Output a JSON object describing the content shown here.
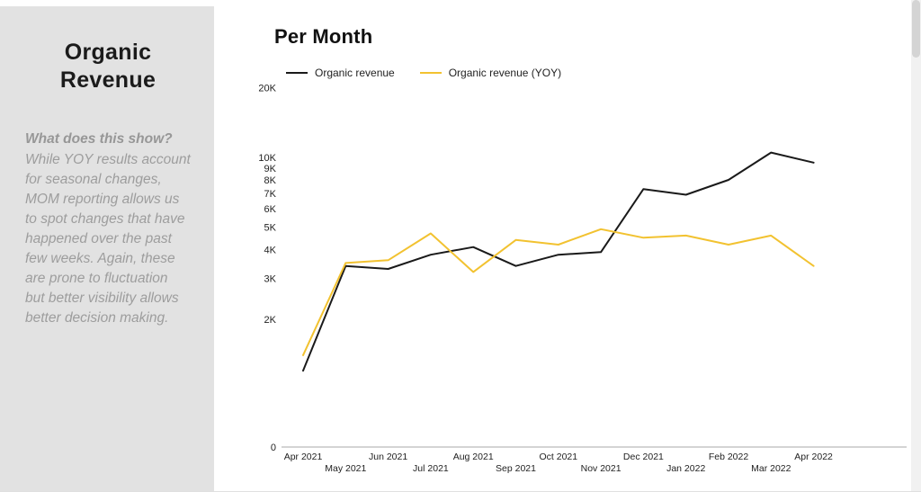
{
  "sidebar": {
    "title": "Organic Revenue",
    "question": "What does this show?",
    "description": "While YOY results account for seasonal changes, MOM reporting allows us to spot changes that have happened over the past few weeks. Again, these are prone to fluctuation but better visibility allows better decision making."
  },
  "main": {
    "title": "Per Month"
  },
  "chart_data": {
    "type": "line",
    "title": "Per Month",
    "x": [
      "Apr 2021",
      "May 2021",
      "Jun 2021",
      "Jul 2021",
      "Aug 2021",
      "Sep 2021",
      "Oct 2021",
      "Nov 2021",
      "Dec 2021",
      "Jan 2022",
      "Feb 2022",
      "Mar 2022",
      "Apr 2022"
    ],
    "series": [
      {
        "name": "Organic revenue",
        "color": "#1a1a1a",
        "values": [
          1200,
          3400,
          3300,
          3800,
          4100,
          3400,
          3800,
          3900,
          7300,
          6900,
          8000,
          10500,
          9500
        ]
      },
      {
        "name": "Organic revenue (YOY)",
        "color": "#f2c230",
        "values": [
          1400,
          3500,
          3600,
          4700,
          3200,
          4400,
          4200,
          4900,
          4500,
          4600,
          4200,
          4600,
          3400
        ]
      }
    ],
    "y_axis": {
      "scale": "log",
      "ticks": [
        20000,
        10000,
        9000,
        8000,
        7000,
        6000,
        5000,
        4000,
        3000,
        2000
      ],
      "baseline_label": "0"
    },
    "grid": "off",
    "legend_position": "top"
  }
}
